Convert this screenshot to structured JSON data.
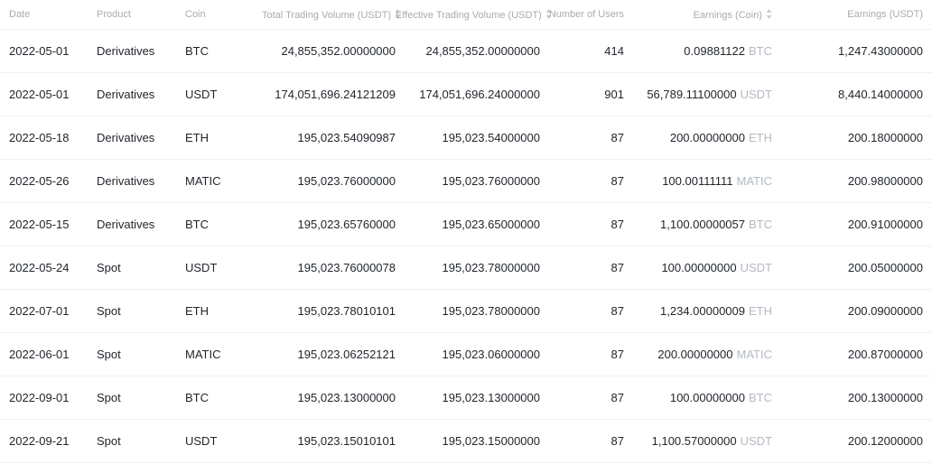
{
  "table": {
    "columns": [
      {
        "label": "Date",
        "align": "left",
        "sortable": false
      },
      {
        "label": "Product",
        "align": "left",
        "sortable": false
      },
      {
        "label": "Coin",
        "align": "left",
        "sortable": false
      },
      {
        "label": "Total Trading Volume (USDT)",
        "align": "right",
        "sortable": true
      },
      {
        "label": "Effective Trading Volume (USDT)",
        "align": "right",
        "sortable": true
      },
      {
        "label": "Number of Users",
        "align": "right",
        "sortable": false
      },
      {
        "label": "Earnings (Coin)",
        "align": "right",
        "sortable": true
      },
      {
        "label": "Earnings (USDT)",
        "align": "right",
        "sortable": false
      }
    ],
    "rows": [
      {
        "date": "2022-05-01",
        "product": "Derivatives",
        "coin": "BTC",
        "total_volume": "24,855,352.00000000",
        "effective_volume": "24,855,352.00000000",
        "users": "414",
        "earnings_coin": "0.09881122",
        "earnings_coin_unit": "BTC",
        "earnings_usdt": "1,247.43000000"
      },
      {
        "date": "2022-05-01",
        "product": "Derivatives",
        "coin": "USDT",
        "total_volume": "174,051,696.24121209",
        "effective_volume": "174,051,696.24000000",
        "users": "901",
        "earnings_coin": "56,789.11100000",
        "earnings_coin_unit": "USDT",
        "earnings_usdt": "8,440.14000000"
      },
      {
        "date": "2022-05-18",
        "product": "Derivatives",
        "coin": "ETH",
        "total_volume": "195,023.54090987",
        "effective_volume": "195,023.54000000",
        "users": "87",
        "earnings_coin": "200.00000000",
        "earnings_coin_unit": "ETH",
        "earnings_usdt": "200.18000000"
      },
      {
        "date": "2022-05-26",
        "product": "Derivatives",
        "coin": "MATIC",
        "total_volume": "195,023.76000000",
        "effective_volume": "195,023.76000000",
        "users": "87",
        "earnings_coin": "100.00111111",
        "earnings_coin_unit": "MATIC",
        "earnings_usdt": "200.98000000"
      },
      {
        "date": "2022-05-15",
        "product": "Derivatives",
        "coin": "BTC",
        "total_volume": "195,023.65760000",
        "effective_volume": "195,023.65000000",
        "users": "87",
        "earnings_coin": "1,100.00000057",
        "earnings_coin_unit": "BTC",
        "earnings_usdt": "200.91000000"
      },
      {
        "date": "2022-05-24",
        "product": "Spot",
        "coin": "USDT",
        "total_volume": "195,023.76000078",
        "effective_volume": "195,023.78000000",
        "users": "87",
        "earnings_coin": "100.00000000",
        "earnings_coin_unit": "USDT",
        "earnings_usdt": "200.05000000"
      },
      {
        "date": "2022-07-01",
        "product": "Spot",
        "coin": "ETH",
        "total_volume": "195,023.78010101",
        "effective_volume": "195,023.78000000",
        "users": "87",
        "earnings_coin": "1,234.00000009",
        "earnings_coin_unit": "ETH",
        "earnings_usdt": "200.09000000"
      },
      {
        "date": "2022-06-01",
        "product": "Spot",
        "coin": "MATIC",
        "total_volume": "195,023.06252121",
        "effective_volume": "195,023.06000000",
        "users": "87",
        "earnings_coin": "200.00000000",
        "earnings_coin_unit": "MATIC",
        "earnings_usdt": "200.87000000"
      },
      {
        "date": "2022-09-01",
        "product": "Spot",
        "coin": "BTC",
        "total_volume": "195,023.13000000",
        "effective_volume": "195,023.13000000",
        "users": "87",
        "earnings_coin": "100.00000000",
        "earnings_coin_unit": "BTC",
        "earnings_usdt": "200.13000000"
      },
      {
        "date": "2022-09-21",
        "product": "Spot",
        "coin": "USDT",
        "total_volume": "195,023.15010101",
        "effective_volume": "195,023.15000000",
        "users": "87",
        "earnings_coin": "1,100.57000000",
        "earnings_coin_unit": "USDT",
        "earnings_usdt": "200.12000000"
      }
    ]
  },
  "icons": {
    "sort": "sort-icon"
  },
  "colors": {
    "body_text": "#21262c",
    "header_text": "#a6abb2",
    "coin_unit_text": "#b4bac2",
    "divider": "#f0f1f3",
    "sort_icon": "#c8ccd2",
    "background": "#ffffff"
  }
}
